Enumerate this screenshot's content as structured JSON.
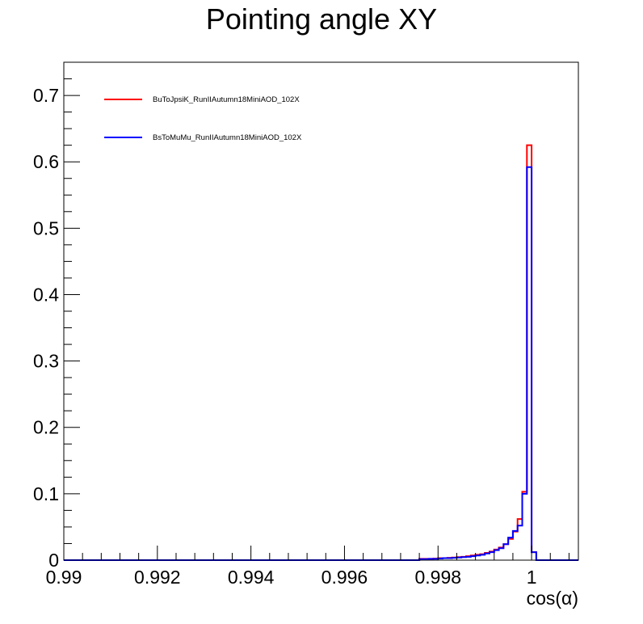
{
  "chart_data": {
    "type": "line",
    "title": "Pointing angle XY",
    "xlabel": "cos(α)",
    "ylabel": "",
    "xlim": [
      0.99,
      1.001
    ],
    "ylim": [
      0,
      0.75
    ],
    "bin_width": 0.0001,
    "x_ticks": [
      0.99,
      0.992,
      0.994,
      0.996,
      0.998,
      1
    ],
    "x_tick_labels": [
      "0.99",
      "0.992",
      "0.994",
      "0.996",
      "0.998",
      "1"
    ],
    "y_ticks": [
      0,
      0.1,
      0.2,
      0.3,
      0.4,
      0.5,
      0.6,
      0.7
    ],
    "y_tick_labels": [
      "0",
      "0.1",
      "0.2",
      "0.3",
      "0.4",
      "0.5",
      "0.6",
      "0.7"
    ],
    "grid": false,
    "legend_position": "top-left",
    "series": [
      {
        "name": "BuToJpsiK_RunIIAutumn18MiniAOD_102X",
        "color": "#ff0000",
        "x": [
          0.9976,
          0.9977,
          0.9978,
          0.9979,
          0.998,
          0.9981,
          0.9982,
          0.9983,
          0.9984,
          0.9985,
          0.9986,
          0.9987,
          0.9988,
          0.9989,
          0.999,
          0.9991,
          0.9992,
          0.9993,
          0.9994,
          0.9995,
          0.9996,
          0.9997,
          0.9998,
          0.9999,
          1.0
        ],
        "values": [
          0.002,
          0.002,
          0.002,
          0.0025,
          0.003,
          0.003,
          0.0035,
          0.004,
          0.0045,
          0.005,
          0.006,
          0.007,
          0.008,
          0.009,
          0.011,
          0.013,
          0.016,
          0.019,
          0.024,
          0.032,
          0.043,
          0.062,
          0.103,
          0.625,
          0.012
        ]
      },
      {
        "name": "BsToMuMu_RunIIAutumn18MiniAOD_102X",
        "color": "#0000ff",
        "x": [
          0.9976,
          0.9977,
          0.9978,
          0.9979,
          0.998,
          0.9981,
          0.9982,
          0.9983,
          0.9984,
          0.9985,
          0.9986,
          0.9987,
          0.9988,
          0.9989,
          0.999,
          0.9991,
          0.9992,
          0.9993,
          0.9994,
          0.9995,
          0.9996,
          0.9997,
          0.9998,
          0.9999,
          1.0
        ],
        "values": [
          0.0015,
          0.0015,
          0.002,
          0.002,
          0.0025,
          0.003,
          0.003,
          0.0035,
          0.004,
          0.0045,
          0.005,
          0.006,
          0.007,
          0.008,
          0.01,
          0.012,
          0.015,
          0.018,
          0.024,
          0.034,
          0.044,
          0.052,
          0.1,
          0.592,
          0.012
        ]
      }
    ]
  }
}
